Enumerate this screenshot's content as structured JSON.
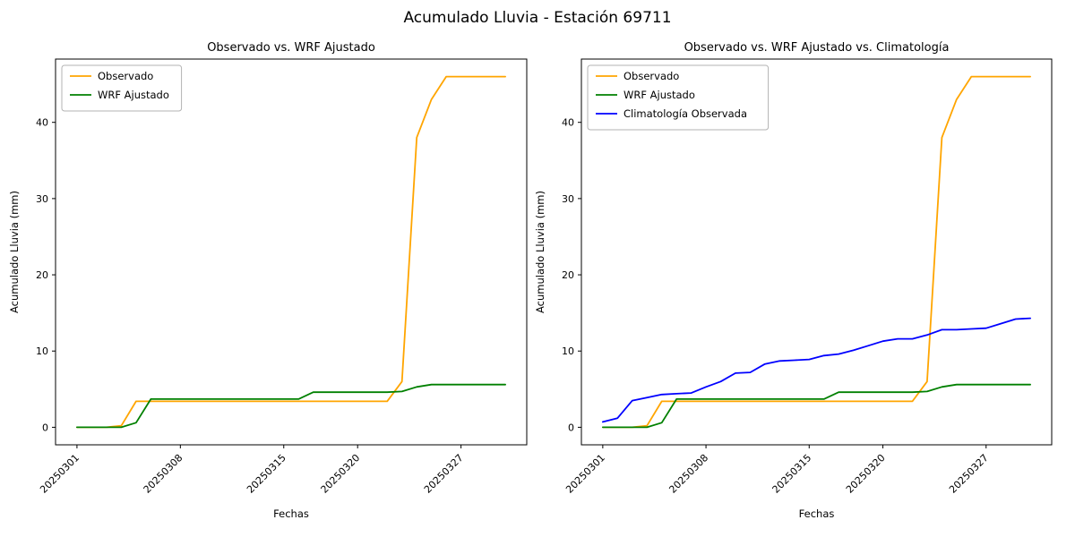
{
  "figure": {
    "title": "Acumulado Lluvia - Estación 69711",
    "background": "#ffffff"
  },
  "chart_data": [
    {
      "type": "line",
      "title": "Observado vs. WRF Ajustado",
      "xlabel": "Fechas",
      "ylabel": "Acumulado Lluvia (mm)",
      "grid": false,
      "legend_position": "upper left",
      "ylim": [
        -2.3,
        48.3
      ],
      "yticks": [
        0,
        10,
        20,
        30,
        40
      ],
      "xtick_labels": [
        "20250301",
        "20250308",
        "20250315",
        "20250320",
        "20250327"
      ],
      "x": [
        "20250301",
        "20250302",
        "20250303",
        "20250304",
        "20250305",
        "20250306",
        "20250307",
        "20250308",
        "20250309",
        "20250310",
        "20250311",
        "20250312",
        "20250313",
        "20250314",
        "20250315",
        "20250316",
        "20250317",
        "20250318",
        "20250319",
        "20250320",
        "20250321",
        "20250322",
        "20250323",
        "20250324",
        "20250325",
        "20250326",
        "20250327",
        "20250328",
        "20250329",
        "20250330"
      ],
      "series": [
        {
          "name": "Observado",
          "color": "#FFA500",
          "values": [
            0,
            0,
            0,
            0.2,
            3.4,
            3.4,
            3.4,
            3.4,
            3.4,
            3.4,
            3.4,
            3.4,
            3.4,
            3.4,
            3.4,
            3.4,
            3.4,
            3.4,
            3.4,
            3.4,
            3.4,
            3.4,
            6.0,
            38.0,
            43.0,
            46.0,
            46.0,
            46.0,
            46.0,
            46.0
          ]
        },
        {
          "name": "WRF Ajustado",
          "color": "#008000",
          "values": [
            0,
            0,
            0,
            0,
            0.6,
            3.7,
            3.7,
            3.7,
            3.7,
            3.7,
            3.7,
            3.7,
            3.7,
            3.7,
            3.7,
            3.7,
            4.6,
            4.6,
            4.6,
            4.6,
            4.6,
            4.6,
            4.7,
            5.3,
            5.6,
            5.6,
            5.6,
            5.6,
            5.6,
            5.6
          ]
        }
      ]
    },
    {
      "type": "line",
      "title": "Observado vs. WRF Ajustado vs. Climatología",
      "xlabel": "Fechas",
      "ylabel": "Acumulado Lluvia (mm)",
      "grid": false,
      "legend_position": "upper left",
      "ylim": [
        -2.3,
        48.3
      ],
      "yticks": [
        0,
        10,
        20,
        30,
        40
      ],
      "xtick_labels": [
        "20250301",
        "20250308",
        "20250315",
        "20250320",
        "20250327"
      ],
      "x": [
        "20250301",
        "20250302",
        "20250303",
        "20250304",
        "20250305",
        "20250306",
        "20250307",
        "20250308",
        "20250309",
        "20250310",
        "20250311",
        "20250312",
        "20250313",
        "20250314",
        "20250315",
        "20250316",
        "20250317",
        "20250318",
        "20250319",
        "20250320",
        "20250321",
        "20250322",
        "20250323",
        "20250324",
        "20250325",
        "20250326",
        "20250327",
        "20250328",
        "20250329",
        "20250330"
      ],
      "series": [
        {
          "name": "Observado",
          "color": "#FFA500",
          "values": [
            0,
            0,
            0,
            0.2,
            3.4,
            3.4,
            3.4,
            3.4,
            3.4,
            3.4,
            3.4,
            3.4,
            3.4,
            3.4,
            3.4,
            3.4,
            3.4,
            3.4,
            3.4,
            3.4,
            3.4,
            3.4,
            6.0,
            38.0,
            43.0,
            46.0,
            46.0,
            46.0,
            46.0,
            46.0
          ]
        },
        {
          "name": "WRF Ajustado",
          "color": "#008000",
          "values": [
            0,
            0,
            0,
            0,
            0.6,
            3.7,
            3.7,
            3.7,
            3.7,
            3.7,
            3.7,
            3.7,
            3.7,
            3.7,
            3.7,
            3.7,
            4.6,
            4.6,
            4.6,
            4.6,
            4.6,
            4.6,
            4.7,
            5.3,
            5.6,
            5.6,
            5.6,
            5.6,
            5.6,
            5.6
          ]
        },
        {
          "name": "Climatología Observada",
          "color": "#0000FF",
          "values": [
            0.7,
            1.2,
            3.5,
            3.9,
            4.3,
            4.4,
            4.5,
            5.3,
            6.0,
            7.1,
            7.2,
            8.3,
            8.7,
            8.8,
            8.9,
            9.4,
            9.6,
            10.1,
            10.7,
            11.3,
            11.6,
            11.6,
            12.1,
            12.8,
            12.8,
            12.9,
            13.0,
            13.6,
            14.2,
            14.3
          ]
        }
      ]
    }
  ]
}
